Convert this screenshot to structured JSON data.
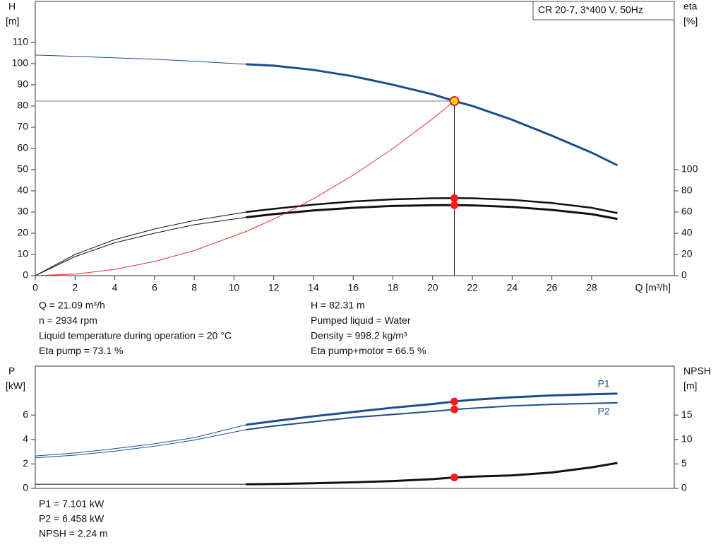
{
  "chart_data": [
    {
      "type": "line",
      "title": "CR 20-7, 3*400 V, 50Hz",
      "ylabel": "H",
      "yunit": "[m]",
      "y2label": "eta",
      "y2unit": "[%]",
      "xlabel": "Q [m³/h]",
      "xlim": [
        0,
        32.16
      ],
      "xticks": [
        0,
        2,
        4,
        6,
        8,
        10,
        12,
        14,
        16,
        18,
        20,
        22,
        24,
        26,
        28
      ],
      "ylim": [
        0,
        129.3
      ],
      "yticks": [
        0,
        10,
        20,
        30,
        40,
        50,
        60,
        70,
        80,
        90,
        100,
        110
      ],
      "y2lim": [
        0,
        258.7
      ],
      "y2ticks": [
        0,
        20,
        40,
        60,
        80,
        100
      ],
      "bold_from": 10.6,
      "duty_x": 21.09,
      "x": [
        0,
        2,
        4,
        6,
        8,
        10.6,
        12,
        14,
        16,
        18,
        20,
        21.09,
        22,
        24,
        26,
        28,
        29.3
      ],
      "series": [
        {
          "color": "#1b4f8a",
          "width": 3,
          "marker_color": "#ffee00",
          "values": [
            104,
            103.4,
            102.7,
            102,
            101.1,
            99.7,
            99,
            97,
            94,
            90,
            85.5,
            82.31,
            80,
            73.5,
            66,
            58,
            52
          ]
        },
        {
          "color": "#111111",
          "width": 2.5,
          "axis": "y2",
          "marker_color": "#ff1a1a",
          "values": [
            0,
            20,
            34,
            44,
            52,
            60,
            63,
            67,
            70,
            72,
            73,
            73.1,
            73,
            71.5,
            68.5,
            64,
            59
          ]
        },
        {
          "color": "#111111",
          "width": 3,
          "axis": "y2",
          "marker_color": "#ff1a1a",
          "values": [
            0,
            18,
            31,
            40,
            48,
            55,
            58,
            61.5,
            64,
            65.8,
            66.4,
            66.5,
            66.3,
            64.8,
            62,
            58,
            53.5
          ]
        },
        {
          "color": "#e83030",
          "width": 1,
          "values": [
            0,
            0.74,
            2.96,
            6.66,
            11.84,
            20.79,
            26.64,
            36.26,
            47.36,
            59.94,
            74.0,
            82.31,
            null,
            null,
            null,
            null,
            null
          ]
        }
      ],
      "notes": [
        [
          "Q = 21.09 m³/h",
          "n = 2934 rpm",
          "Liquid temperature during operation = 20 °C",
          "Eta pump = 73.1 %"
        ],
        [
          "H = 82.31 m",
          "Pumped liquid = Water",
          "Density = 998.2 kg/m³",
          "Eta pump+motor = 66.5 %"
        ]
      ]
    },
    {
      "type": "line",
      "ylabel": "P",
      "yunit": "[kW]",
      "y2label": "NPSH",
      "y2unit": "[m]",
      "xlim": [
        0,
        32.16
      ],
      "ylim": [
        0,
        10
      ],
      "yticks": [
        0,
        2,
        4,
        6
      ],
      "y2lim": [
        0,
        25
      ],
      "y2ticks": [
        0,
        5,
        10,
        15
      ],
      "bold_from": 10.6,
      "duty_x": 21.09,
      "x": [
        0,
        2,
        4,
        6,
        8,
        10.6,
        12,
        14,
        16,
        18,
        20,
        21.09,
        22,
        24,
        26,
        28,
        29.3
      ],
      "series": [
        {
          "name": "P1",
          "color": "#1b4f8a",
          "width": 3,
          "marker_color": "#ff1a1a",
          "values": [
            2.65,
            2.9,
            3.25,
            3.65,
            4.15,
            5.2,
            5.5,
            5.9,
            6.25,
            6.6,
            6.9,
            7.101,
            7.25,
            7.45,
            7.6,
            7.7,
            7.75
          ]
        },
        {
          "name": "P2",
          "color": "#1b4f8a",
          "width": 2,
          "marker_color": "#ff1a1a",
          "values": [
            2.5,
            2.72,
            3.05,
            3.45,
            3.95,
            4.8,
            5.1,
            5.45,
            5.8,
            6.05,
            6.3,
            6.458,
            6.55,
            6.75,
            6.87,
            6.95,
            7.0
          ]
        },
        {
          "color": "#111111",
          "width": 3,
          "axis": "y2",
          "marker_color": "#ff1a1a",
          "values": [
            0.85,
            0.85,
            0.85,
            0.85,
            0.85,
            0.85,
            0.9,
            1.05,
            1.25,
            1.5,
            1.9,
            2.24,
            2.4,
            2.65,
            3.25,
            4.3,
            5.2
          ]
        }
      ],
      "notes": [
        [
          "P1 = 7.101 kW",
          "P2 = 6.458 kW",
          "NPSH = 2.24 m"
        ]
      ]
    }
  ]
}
